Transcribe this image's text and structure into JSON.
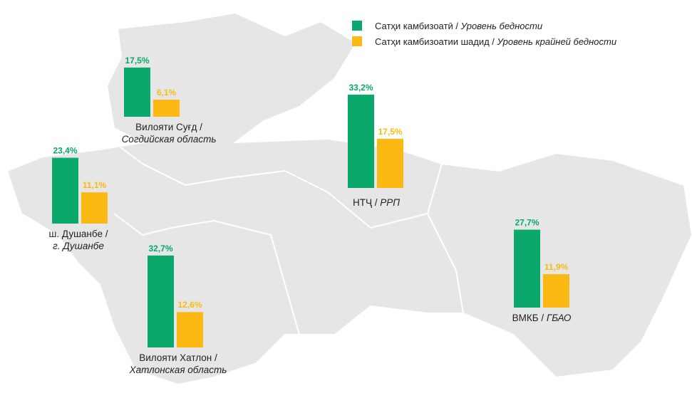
{
  "legend": [
    {
      "text": "Сатҳи  камбизоатӣ /",
      "text_ru": "Уровень  бедности",
      "color": "#0aa86a"
    },
    {
      "text": "Сатҳи  камбизоатии шадид /",
      "text_ru": "Уровень крайней бедности",
      "color": "#fdb913"
    }
  ],
  "regions": [
    {
      "name": "Вилояти Суғд /",
      "name_ru": "Согдийская область",
      "values": [
        17.5,
        6.1
      ],
      "value_labels": [
        "17,5%",
        "6,1%"
      ]
    },
    {
      "name": "ш. Душанбе /",
      "name_ru": "г. Душанбе",
      "values": [
        23.4,
        11.1
      ],
      "value_labels": [
        "23,4%",
        "11,1%"
      ]
    },
    {
      "name": "Вилояти Хатлон /",
      "name_ru": "Хатлонская область",
      "values": [
        32.7,
        12.6
      ],
      "value_labels": [
        "32,7%",
        "12,6%"
      ]
    },
    {
      "name": "НТҶ /",
      "name_ru": "РРП",
      "values": [
        33.2,
        17.5
      ],
      "value_labels": [
        "33,2%",
        "17,5%"
      ]
    },
    {
      "name": "ВМКБ /",
      "name_ru": "ГБАО",
      "values": [
        27.7,
        11.9
      ],
      "value_labels": [
        "27,7%",
        "11,9%"
      ]
    }
  ]
}
